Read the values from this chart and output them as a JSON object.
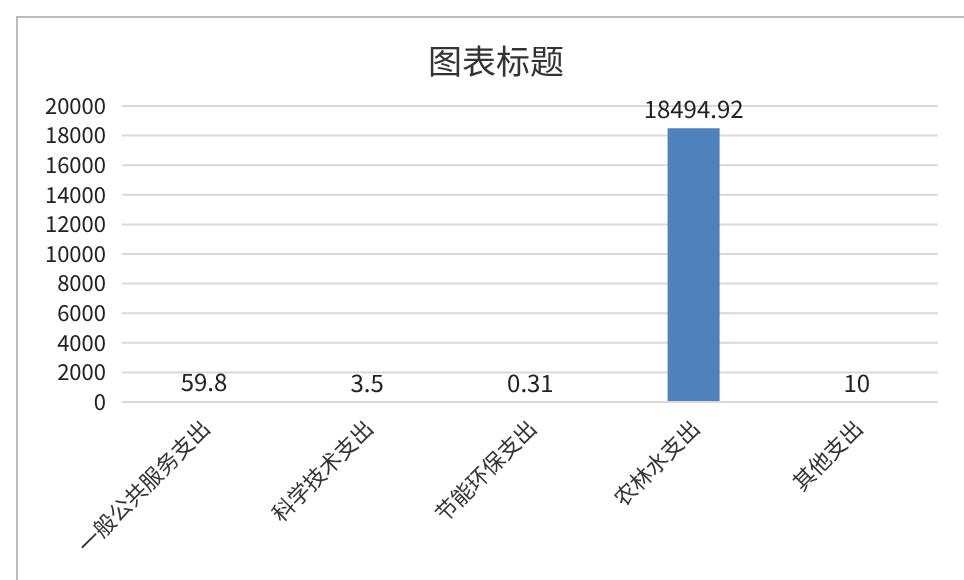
{
  "chart_data": {
    "type": "bar",
    "title": "图表标题",
    "categories": [
      "一般公共服务支出",
      "科学技术支出",
      "节能环保支出",
      "农林水支出",
      "其他支出"
    ],
    "values": [
      59.8,
      3.5,
      0.31,
      18494.92,
      10
    ],
    "color": "#4f81bd",
    "ylim": [
      0,
      20000
    ],
    "yticks": [
      0,
      2000,
      4000,
      6000,
      8000,
      10000,
      12000,
      14000,
      16000,
      18000,
      20000
    ],
    "grid": "y",
    "data_labels": true
  }
}
